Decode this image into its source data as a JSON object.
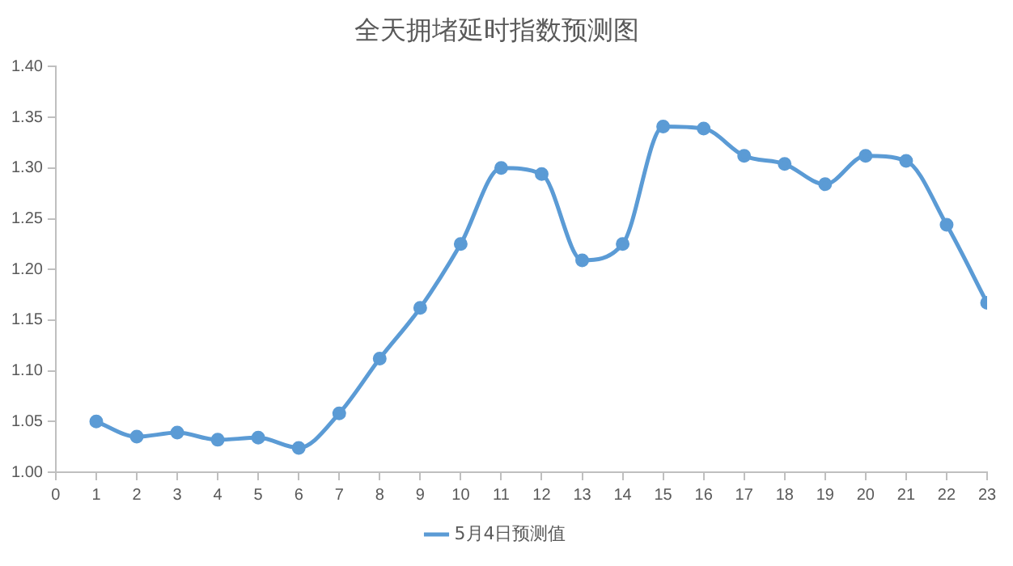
{
  "chart_data": {
    "type": "line",
    "title": "全天拥堵延时指数预测图",
    "x": [
      1,
      2,
      3,
      4,
      5,
      6,
      7,
      8,
      9,
      10,
      11,
      12,
      13,
      14,
      15,
      16,
      17,
      18,
      19,
      20,
      21,
      22,
      23
    ],
    "series": [
      {
        "name": "5月4日预测值",
        "color": "#5b9bd5",
        "values": [
          1.05,
          1.035,
          1.039,
          1.032,
          1.034,
          1.024,
          1.058,
          1.112,
          1.162,
          1.225,
          1.3,
          1.294,
          1.209,
          1.225,
          1.341,
          1.339,
          1.312,
          1.304,
          1.284,
          1.312,
          1.307,
          1.244,
          1.167
        ]
      }
    ],
    "xlim": [
      0,
      23
    ],
    "xticks": [
      0,
      1,
      2,
      3,
      4,
      5,
      6,
      7,
      8,
      9,
      10,
      11,
      12,
      13,
      14,
      15,
      16,
      17,
      18,
      19,
      20,
      21,
      22,
      23
    ],
    "ylim": [
      1.0,
      1.4
    ],
    "yticks": [
      {
        "value": 1.0,
        "label": "1.00"
      },
      {
        "value": 1.05,
        "label": "1.05"
      },
      {
        "value": 1.1,
        "label": "1.10"
      },
      {
        "value": 1.15,
        "label": "1.15"
      },
      {
        "value": 1.2,
        "label": "1.20"
      },
      {
        "value": 1.25,
        "label": "1.25"
      },
      {
        "value": 1.3,
        "label": "1.30"
      },
      {
        "value": 1.35,
        "label": "1.35"
      },
      {
        "value": 1.4,
        "label": "1.40"
      }
    ],
    "grid": false,
    "legend": "bottom",
    "marker": "circle",
    "line_style": "solid"
  }
}
